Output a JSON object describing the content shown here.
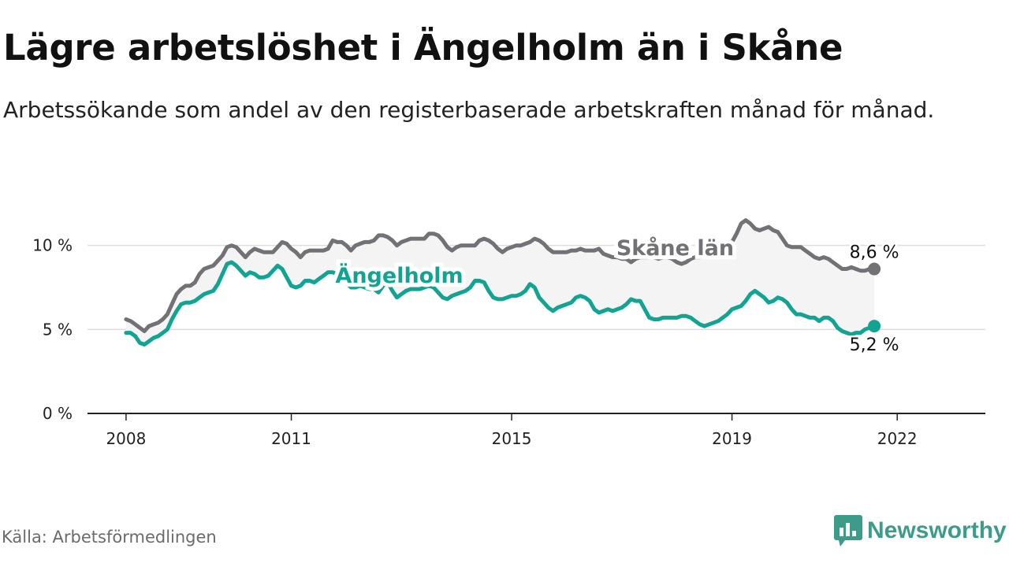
{
  "header": {
    "title": "Lägre arbetslöshet i Ängelholm än i Skåne",
    "subtitle": "Arbetssökande som andel av den registerbaserade arbetskraften månad för månad."
  },
  "footer": {
    "source": "Källa: Arbetsförmedlingen",
    "brand": "Newsworthy"
  },
  "colors": {
    "skane": "#717176",
    "angelholm": "#12a493",
    "band": "#f4f4f4",
    "grid": "#dddddd",
    "axis": "#222222",
    "brand": "#3d9b8a"
  },
  "icons": {
    "brand": "newsworthy-logo-icon"
  },
  "chart_data": {
    "type": "line",
    "x_start": 2008.0,
    "x_step_years": 0.0833333,
    "xlim": [
      2007.3,
      2023.6
    ],
    "ylim": [
      0,
      12
    ],
    "x_ticks": [
      {
        "value": 2008,
        "label": "2008"
      },
      {
        "value": 2011,
        "label": "2011"
      },
      {
        "value": 2015,
        "label": "2015"
      },
      {
        "value": 2019,
        "label": "2019"
      },
      {
        "value": 2022,
        "label": "2022"
      }
    ],
    "y_ticks": [
      {
        "value": 0,
        "label": "0 %"
      },
      {
        "value": 5,
        "label": "5 %"
      },
      {
        "value": 10,
        "label": "10 %"
      }
    ],
    "gridlines": [
      5,
      10
    ],
    "series": [
      {
        "name": "Skåne län",
        "end_label": "8,6 %",
        "label_position": "above",
        "values": [
          5.6,
          5.5,
          5.3,
          5.1,
          4.9,
          5.2,
          5.3,
          5.4,
          5.6,
          5.9,
          6.5,
          7.1,
          7.4,
          7.6,
          7.6,
          7.8,
          8.3,
          8.6,
          8.7,
          8.8,
          9.1,
          9.4,
          9.9,
          10.0,
          9.9,
          9.6,
          9.3,
          9.6,
          9.8,
          9.7,
          9.6,
          9.6,
          9.6,
          9.9,
          10.2,
          10.1,
          9.8,
          9.6,
          9.3,
          9.6,
          9.7,
          9.7,
          9.7,
          9.7,
          9.8,
          10.3,
          10.2,
          10.2,
          10.0,
          9.7,
          10.0,
          10.1,
          10.2,
          10.2,
          10.3,
          10.6,
          10.6,
          10.5,
          10.3,
          10.0,
          10.2,
          10.3,
          10.4,
          10.4,
          10.4,
          10.4,
          10.7,
          10.7,
          10.6,
          10.3,
          9.9,
          9.7,
          9.9,
          10.0,
          10.0,
          10.0,
          10.0,
          10.3,
          10.4,
          10.3,
          10.1,
          9.8,
          9.6,
          9.8,
          9.9,
          10.0,
          10.0,
          10.1,
          10.2,
          10.4,
          10.3,
          10.1,
          9.8,
          9.6,
          9.6,
          9.6,
          9.6,
          9.7,
          9.7,
          9.8,
          9.7,
          9.7,
          9.7,
          9.8,
          9.5,
          9.4,
          9.3,
          9.3,
          9.2,
          9.2,
          9.0,
          9.2,
          9.3,
          9.3,
          9.3,
          9.3,
          9.2,
          9.3,
          9.3,
          9.2,
          9.0,
          8.9,
          9.0,
          9.2,
          9.3,
          9.3,
          9.4,
          9.5,
          9.7,
          9.8,
          9.7,
          9.7,
          10.2,
          10.7,
          11.3,
          11.5,
          11.3,
          11.0,
          10.9,
          11.0,
          11.1,
          10.9,
          10.8,
          10.4,
          10.0,
          9.9,
          9.9,
          9.9,
          9.7,
          9.5,
          9.3,
          9.2,
          9.3,
          9.2,
          9.0,
          8.8,
          8.6,
          8.6,
          8.7,
          8.6,
          8.5,
          8.5,
          8.6,
          8.6
        ]
      },
      {
        "name": "Ängelholm",
        "end_label": "5,2 %",
        "label_position": "below",
        "values": [
          4.8,
          4.8,
          4.6,
          4.2,
          4.1,
          4.3,
          4.5,
          4.6,
          4.8,
          5.0,
          5.6,
          6.1,
          6.5,
          6.6,
          6.6,
          6.7,
          6.9,
          7.1,
          7.2,
          7.3,
          7.7,
          8.3,
          8.9,
          9.0,
          8.8,
          8.5,
          8.2,
          8.4,
          8.3,
          8.1,
          8.1,
          8.2,
          8.5,
          8.8,
          8.6,
          8.1,
          7.6,
          7.5,
          7.6,
          7.9,
          7.9,
          7.8,
          8.0,
          8.2,
          8.4,
          8.4,
          8.3,
          8.0,
          7.8,
          7.5,
          7.5,
          7.6,
          7.5,
          7.4,
          7.4,
          7.2,
          7.6,
          7.8,
          7.3,
          6.9,
          7.1,
          7.3,
          7.4,
          7.4,
          7.4,
          7.5,
          7.6,
          7.5,
          7.2,
          6.9,
          6.8,
          7.0,
          7.1,
          7.2,
          7.3,
          7.5,
          7.9,
          7.9,
          7.8,
          7.3,
          6.9,
          6.8,
          6.8,
          6.9,
          7.0,
          7.0,
          7.1,
          7.3,
          7.7,
          7.5,
          6.9,
          6.6,
          6.3,
          6.1,
          6.3,
          6.4,
          6.5,
          6.6,
          6.9,
          7.0,
          6.9,
          6.7,
          6.2,
          6.0,
          6.1,
          6.2,
          6.1,
          6.2,
          6.3,
          6.5,
          6.8,
          6.7,
          6.7,
          6.2,
          5.7,
          5.6,
          5.6,
          5.7,
          5.7,
          5.7,
          5.7,
          5.8,
          5.8,
          5.7,
          5.5,
          5.3,
          5.2,
          5.3,
          5.4,
          5.5,
          5.7,
          5.9,
          6.2,
          6.3,
          6.4,
          6.7,
          7.1,
          7.3,
          7.1,
          6.9,
          6.6,
          6.7,
          6.9,
          6.8,
          6.6,
          6.2,
          5.9,
          5.9,
          5.8,
          5.7,
          5.7,
          5.5,
          5.7,
          5.7,
          5.5,
          5.1,
          4.9,
          4.8,
          4.7,
          4.8,
          4.8,
          5.0,
          5.1,
          5.2
        ]
      }
    ]
  }
}
